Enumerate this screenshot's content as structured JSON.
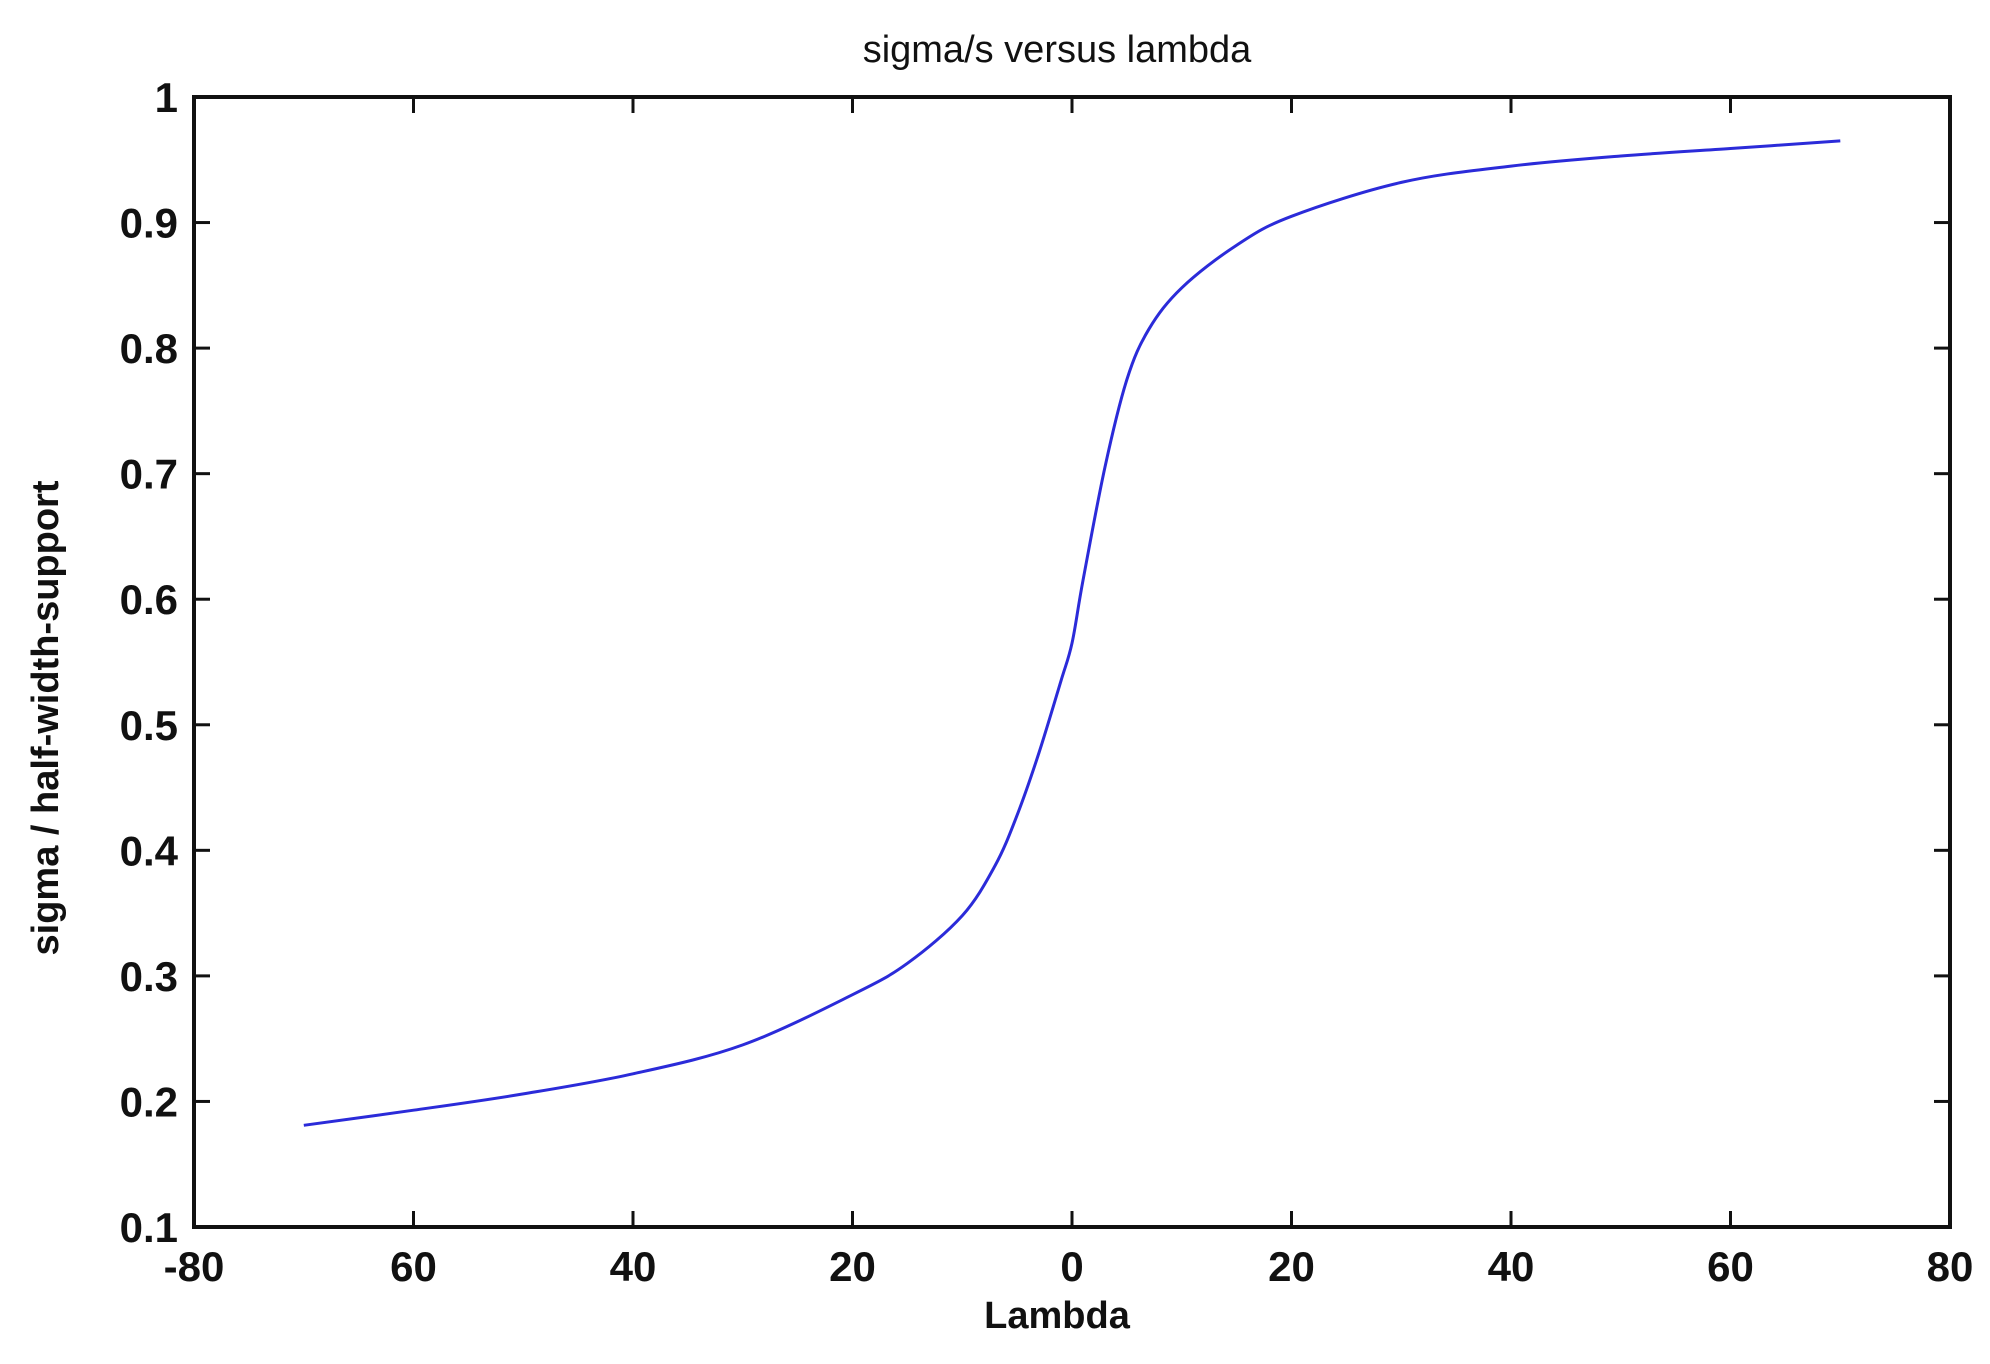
{
  "chart_data": {
    "type": "line",
    "title": "sigma/s versus lambda",
    "xlabel": "Lambda",
    "ylabel": "sigma / half-width-support",
    "xlim": [
      -80,
      80
    ],
    "ylim": [
      0.1,
      1
    ],
    "xtick_labels": [
      "-80",
      "60",
      "40",
      "20",
      "0",
      "20",
      "40",
      "60",
      "80"
    ],
    "ytick_labels": [
      "0.1",
      "0.2",
      "0.3",
      "0.4",
      "0.5",
      "0.6",
      "0.7",
      "0.8",
      "0.9",
      "1"
    ],
    "grid": false,
    "line_color": "#2b2bd9",
    "series": [
      {
        "x": [
          -70,
          -60,
          -50,
          -40,
          -30,
          -20,
          -15,
          -10,
          -7,
          -5,
          -3,
          -1,
          0,
          1,
          3,
          5,
          7,
          10,
          15,
          20,
          30,
          40,
          50,
          60,
          70
        ],
        "values": [
          0.181,
          0.193,
          0.206,
          0.222,
          0.245,
          0.285,
          0.31,
          0.348,
          0.388,
          0.428,
          0.478,
          0.535,
          0.565,
          0.615,
          0.705,
          0.775,
          0.815,
          0.848,
          0.882,
          0.905,
          0.932,
          0.945,
          0.953,
          0.959,
          0.965
        ]
      }
    ]
  }
}
